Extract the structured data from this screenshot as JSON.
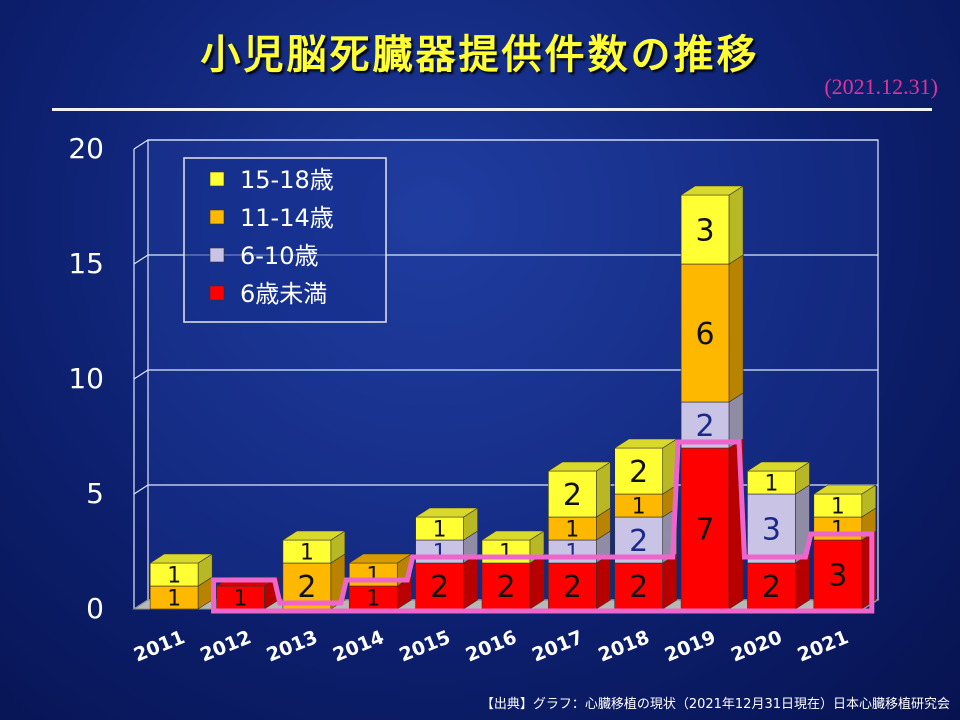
{
  "title": "小児脳死臓器提供件数の推移",
  "date": "(2021.12.31)",
  "source": "【出典】グラフ：心臓移植の現状（2021年12月31日現在）日本心臓移植研究会",
  "colors": {
    "15-18": "#ffff33",
    "11-14": "#ffb800",
    "6-10": "#c9c3e6",
    "under6": "#ff0000",
    "highlight": "#ee66cc",
    "grid": "#dfe6ff"
  },
  "chart_data": {
    "type": "bar",
    "stacked": true,
    "categories": [
      "2011",
      "2012",
      "2013",
      "2014",
      "2015",
      "2016",
      "2017",
      "2018",
      "2019",
      "2020",
      "2021"
    ],
    "series": [
      {
        "name": "6歳未満",
        "values": [
          0,
          1,
          0,
          1,
          2,
          2,
          2,
          2,
          7,
          2,
          3
        ]
      },
      {
        "name": "6-10歳",
        "values": [
          0,
          0,
          0,
          0,
          1,
          0,
          1,
          2,
          2,
          3,
          0
        ]
      },
      {
        "name": "11-14歳",
        "values": [
          1,
          0,
          2,
          1,
          0,
          0,
          1,
          1,
          6,
          0,
          1
        ]
      },
      {
        "name": "15-18歳",
        "values": [
          1,
          0,
          1,
          0,
          1,
          1,
          2,
          2,
          3,
          1,
          1
        ]
      }
    ],
    "legend_order": [
      "15-18歳",
      "11-14歳",
      "6-10歳",
      "6歳未満"
    ],
    "yticks": [
      0,
      5,
      10,
      15,
      20
    ],
    "ylim": [
      0,
      20
    ],
    "grid": true,
    "legend_position": "top-left"
  }
}
